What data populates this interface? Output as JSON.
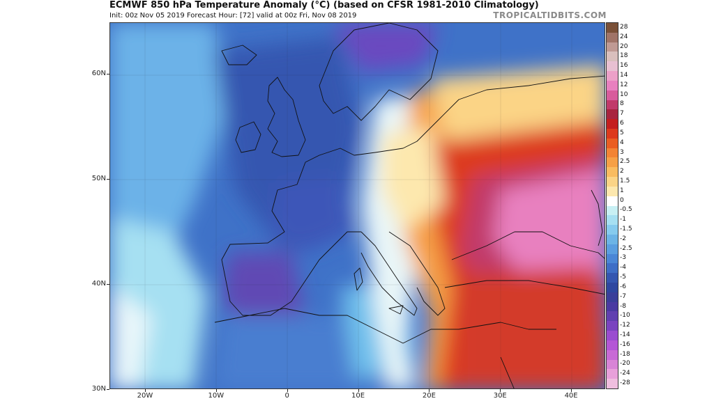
{
  "header": {
    "title": "ECMWF 850 hPa Temperature Anomaly (°C) (based on CFSR 1981-2010 Climatology)",
    "subtitle": "Init: 00z Nov 05 2019   Forecast Hour: [72]   valid at 00z Fri, Nov 08 2019",
    "credit": "TROPICALTIDBITS.COM"
  },
  "map": {
    "region": "Europe, North Africa and Middle East",
    "lat_labels": [
      "60N",
      "50N",
      "40N",
      "30N"
    ],
    "lat_values": [
      60,
      50,
      40,
      30
    ],
    "lon_labels": [
      "20W",
      "10W",
      "0",
      "10E",
      "20E",
      "30E",
      "40E"
    ],
    "lon_values": [
      -20,
      -10,
      0,
      10,
      20,
      30,
      40
    ],
    "lon_range": [
      -25,
      45
    ],
    "lat_range": [
      30,
      65
    ]
  },
  "colorbar": {
    "labels": [
      "28",
      "24",
      "20",
      "18",
      "16",
      "14",
      "12",
      "10",
      "8",
      "7",
      "6",
      "5",
      "4",
      "3",
      "2.5",
      "2",
      "1.5",
      "1",
      "0",
      "-0.5",
      "-1",
      "-1.5",
      "-2",
      "-2.5",
      "-3",
      "-4",
      "-5",
      "-6",
      "-7",
      "-8",
      "-10",
      "-12",
      "-14",
      "-16",
      "-18",
      "-20",
      "-24",
      "-28"
    ],
    "colors": [
      "#7a5038",
      "#a07468",
      "#bf9a94",
      "#d9bfbd",
      "#e8c0d2",
      "#eca0c8",
      "#e880bf",
      "#d85c9c",
      "#c13a6a",
      "#a8243e",
      "#c41e1e",
      "#dd3a1c",
      "#ea5e22",
      "#f38434",
      "#f6a046",
      "#f9bc60",
      "#fbd486",
      "#fde8ae",
      "#ffffff",
      "#c8f0f4",
      "#a6e0f2",
      "#86cbee",
      "#6cb4e6",
      "#5a9ee0",
      "#4a86d6",
      "#3e6ec6",
      "#3456b0",
      "#2e47a0",
      "#3a3f9a",
      "#4a3aa2",
      "#6040b0",
      "#7a44c0",
      "#9a4cd0",
      "#b456d6",
      "#c86ad6",
      "#d884d6",
      "#e8a0da",
      "#f0bedf"
    ],
    "accent_note": "warm colors positive anomaly, cool colors negative anomaly"
  }
}
